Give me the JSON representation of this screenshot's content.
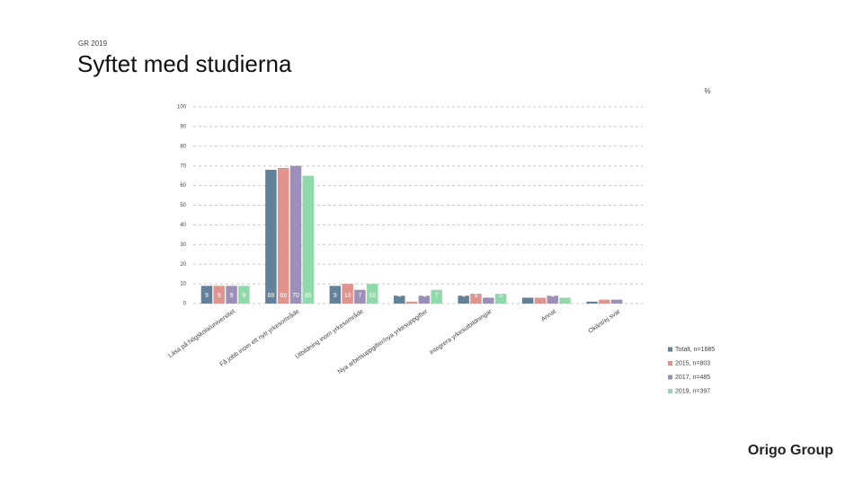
{
  "header": {
    "label": "GR 2019",
    "title": "Syftet med studierna"
  },
  "footer": {
    "brand": "Origo Group"
  },
  "chart_data": {
    "type": "bar",
    "unit_label": "%",
    "categories": [
      "Läsa på högskola/universitet",
      "Få jobb inom ett nytt yrkesområde",
      "Utbildning inom yrkesområde",
      "Nya arbetsuppgifter/nya yrkesuppgifter",
      "Integrera yrkesutbildningar",
      "Annat",
      "Okänt/ej svar"
    ],
    "series": [
      {
        "name": "Totalt, n=1685",
        "color": "#62819a",
        "values": [
          9,
          68,
          9,
          4,
          4,
          3,
          1
        ]
      },
      {
        "name": "2015, n=803",
        "color": "#e3938b",
        "values": [
          9,
          69,
          10,
          1,
          5,
          3,
          2
        ]
      },
      {
        "name": "2017, n=485",
        "color": "#9c90ba",
        "values": [
          9,
          70,
          7,
          4,
          3,
          4,
          2
        ]
      },
      {
        "name": "2019, n=397",
        "color": "#8fdaa9",
        "values": [
          9,
          65,
          10,
          7,
          5,
          3,
          null
        ]
      }
    ],
    "ylim": [
      0,
      100
    ],
    "yticks": [
      0,
      10,
      20,
      30,
      40,
      50,
      60,
      70,
      80,
      90,
      100
    ],
    "grid": true,
    "legend": "bottom-right"
  }
}
